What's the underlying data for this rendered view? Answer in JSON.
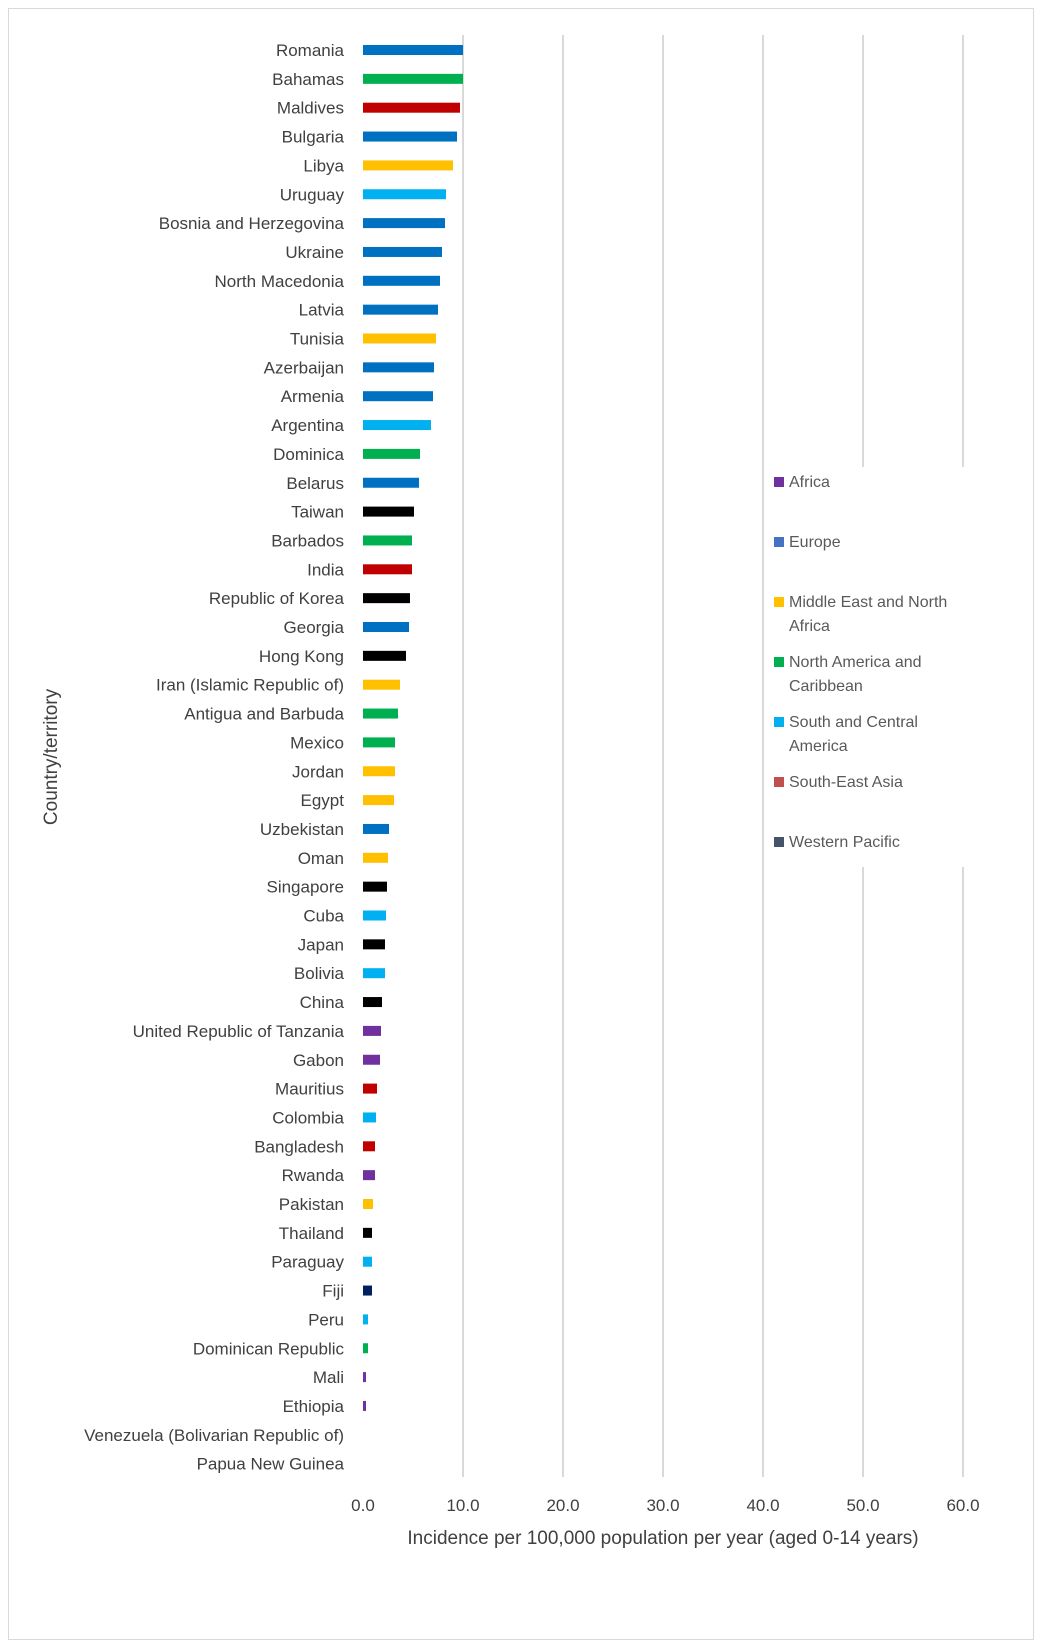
{
  "chart_data": {
    "type": "bar",
    "orientation": "horizontal",
    "xlabel": "Incidence per 100,000 population per year (aged 0-14 years)",
    "ylabel": "Country/territory",
    "xlim": [
      0,
      60
    ],
    "xticks": [
      "0.0",
      "10.0",
      "20.0",
      "30.0",
      "40.0",
      "50.0",
      "60.0"
    ],
    "grid": "vertical",
    "legend_position": "right",
    "legend": [
      {
        "name": "Africa",
        "color": "#7030a0"
      },
      {
        "name": "Europe",
        "color": "#4472c4"
      },
      {
        "name": "Middle East and North Africa",
        "color": "#ffc000"
      },
      {
        "name": "North America and Caribbean",
        "color": "#00b050"
      },
      {
        "name": "South and Central America",
        "color": "#00b0f0"
      },
      {
        "name": "South-East Asia",
        "color": "#c0504d"
      },
      {
        "name": "Western Pacific",
        "color": "#44546a"
      }
    ],
    "region_bar_colors": {
      "Africa": "#7030a0",
      "Europe": "#0070c0",
      "Middle East and North Africa": "#ffc000",
      "North America and Caribbean": "#00b050",
      "South and Central America": "#00b0f0",
      "South-East Asia": "#c00000",
      "Western Pacific": "#000000",
      "Western Pacific (Fiji)": "#002060"
    },
    "bars": [
      {
        "country": "Romania",
        "value": 10.0,
        "region": "Europe"
      },
      {
        "country": "Bahamas",
        "value": 10.0,
        "region": "North America and Caribbean"
      },
      {
        "country": "Maldives",
        "value": 9.7,
        "region": "South-East Asia"
      },
      {
        "country": "Bulgaria",
        "value": 9.4,
        "region": "Europe"
      },
      {
        "country": "Libya",
        "value": 9.0,
        "region": "Middle East and North Africa"
      },
      {
        "country": "Uruguay",
        "value": 8.3,
        "region": "South and Central America"
      },
      {
        "country": "Bosnia and Herzegovina",
        "value": 8.2,
        "region": "Europe"
      },
      {
        "country": "Ukraine",
        "value": 7.9,
        "region": "Europe"
      },
      {
        "country": "North Macedonia",
        "value": 7.7,
        "region": "Europe"
      },
      {
        "country": "Latvia",
        "value": 7.5,
        "region": "Europe"
      },
      {
        "country": "Tunisia",
        "value": 7.3,
        "region": "Middle East and North Africa"
      },
      {
        "country": "Azerbaijan",
        "value": 7.1,
        "region": "Europe"
      },
      {
        "country": "Armenia",
        "value": 7.0,
        "region": "Europe"
      },
      {
        "country": "Argentina",
        "value": 6.8,
        "region": "South and Central America"
      },
      {
        "country": "Dominica",
        "value": 5.7,
        "region": "North America and Caribbean"
      },
      {
        "country": "Belarus",
        "value": 5.6,
        "region": "Europe"
      },
      {
        "country": "Taiwan",
        "value": 5.1,
        "region": "Western Pacific"
      },
      {
        "country": "Barbados",
        "value": 4.9,
        "region": "North America and Caribbean"
      },
      {
        "country": "India",
        "value": 4.9,
        "region": "South-East Asia"
      },
      {
        "country": "Republic of Korea",
        "value": 4.7,
        "region": "Western Pacific"
      },
      {
        "country": "Georgia",
        "value": 4.6,
        "region": "Europe"
      },
      {
        "country": "Hong Kong",
        "value": 4.3,
        "region": "Western Pacific"
      },
      {
        "country": "Iran (Islamic Republic of)",
        "value": 3.7,
        "region": "Middle East and North Africa"
      },
      {
        "country": "Antigua and Barbuda",
        "value": 3.5,
        "region": "North America and Caribbean"
      },
      {
        "country": "Mexico",
        "value": 3.2,
        "region": "North America and Caribbean"
      },
      {
        "country": "Jordan",
        "value": 3.2,
        "region": "Middle East and North Africa"
      },
      {
        "country": "Egypt",
        "value": 3.1,
        "region": "Middle East and North Africa"
      },
      {
        "country": "Uzbekistan",
        "value": 2.6,
        "region": "Europe"
      },
      {
        "country": "Oman",
        "value": 2.5,
        "region": "Middle East and North Africa"
      },
      {
        "country": "Singapore",
        "value": 2.4,
        "region": "Western Pacific"
      },
      {
        "country": "Cuba",
        "value": 2.3,
        "region": "South and Central America"
      },
      {
        "country": "Japan",
        "value": 2.2,
        "region": "Western Pacific"
      },
      {
        "country": "Bolivia",
        "value": 2.2,
        "region": "South and Central America"
      },
      {
        "country": "China",
        "value": 1.9,
        "region": "Western Pacific"
      },
      {
        "country": "United Republic of Tanzania",
        "value": 1.8,
        "region": "Africa"
      },
      {
        "country": "Gabon",
        "value": 1.7,
        "region": "Africa"
      },
      {
        "country": "Mauritius",
        "value": 1.4,
        "region": "South-East Asia"
      },
      {
        "country": "Colombia",
        "value": 1.3,
        "region": "South and Central America"
      },
      {
        "country": "Bangladesh",
        "value": 1.2,
        "region": "South-East Asia"
      },
      {
        "country": "Rwanda",
        "value": 1.2,
        "region": "Africa"
      },
      {
        "country": "Pakistan",
        "value": 1.0,
        "region": "Middle East and North Africa"
      },
      {
        "country": "Thailand",
        "value": 0.9,
        "region": "Western Pacific"
      },
      {
        "country": "Paraguay",
        "value": 0.9,
        "region": "South and Central America"
      },
      {
        "country": "Fiji",
        "value": 0.9,
        "region": "Western Pacific (Fiji)"
      },
      {
        "country": "Peru",
        "value": 0.5,
        "region": "South and Central America"
      },
      {
        "country": "Dominican Republic",
        "value": 0.5,
        "region": "North America and Caribbean"
      },
      {
        "country": "Mali",
        "value": 0.3,
        "region": "Africa"
      },
      {
        "country": "Ethiopia",
        "value": 0.3,
        "region": "Africa"
      },
      {
        "country": "Venezuela (Bolivarian Republic of)",
        "value": 0.0,
        "region": "South and Central America"
      },
      {
        "country": "Papua New Guinea",
        "value": 0.0,
        "region": "Western Pacific"
      }
    ]
  }
}
